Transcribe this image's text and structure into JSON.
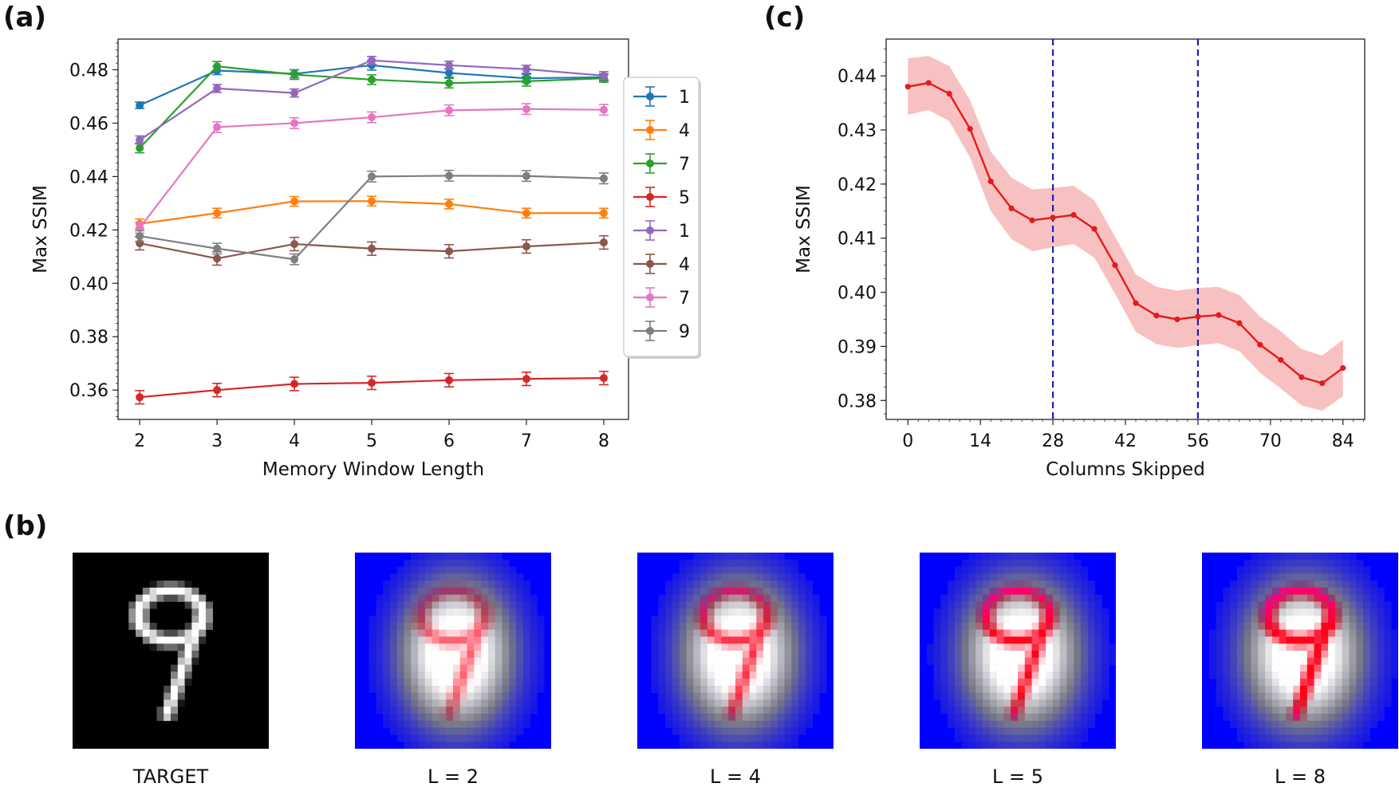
{
  "panel_labels": {
    "a": "(a)",
    "b": "(b)",
    "c": "(c)"
  },
  "chart_data": [
    {
      "type": "line",
      "title": "",
      "xlabel": "Memory Window Length",
      "ylabel": "Max SSIM",
      "x": [
        2,
        3,
        4,
        5,
        6,
        7,
        8
      ],
      "xlim": [
        1.72,
        8.32
      ],
      "ylim": [
        0.349,
        0.4915
      ],
      "xticks": [
        "2",
        "3",
        "4",
        "5",
        "6",
        "7",
        "8"
      ],
      "yticks": [
        "0.36",
        "0.38",
        "0.40",
        "0.42",
        "0.44",
        "0.46",
        "0.48"
      ],
      "ytick_values": [
        0.36,
        0.38,
        0.4,
        0.42,
        0.44,
        0.46,
        0.48
      ],
      "legend_position": "right",
      "series": [
        {
          "name": "1",
          "color": "#1f77b4",
          "values": [
            0.4667,
            0.4797,
            0.4785,
            0.4817,
            0.4788,
            0.4768,
            0.4772
          ],
          "error": [
            0.0012,
            0.0015,
            0.0015,
            0.0018,
            0.0016,
            0.0015,
            0.0013
          ]
        },
        {
          "name": "4",
          "color": "#ff7f0e",
          "values": [
            0.4223,
            0.4263,
            0.4307,
            0.4308,
            0.4297,
            0.4263,
            0.4263
          ],
          "error": [
            0.0018,
            0.0018,
            0.0018,
            0.0018,
            0.0018,
            0.0018,
            0.0018
          ]
        },
        {
          "name": "7",
          "color": "#2ca02c",
          "values": [
            0.4507,
            0.4813,
            0.4782,
            0.4763,
            0.475,
            0.4757,
            0.4768
          ],
          "error": [
            0.0018,
            0.0018,
            0.0018,
            0.0018,
            0.0018,
            0.0018,
            0.0015
          ]
        },
        {
          "name": "5",
          "color": "#d62728",
          "values": [
            0.3573,
            0.36,
            0.3623,
            0.3627,
            0.3637,
            0.3642,
            0.3645
          ],
          "error": [
            0.0025,
            0.0025,
            0.0025,
            0.0025,
            0.0025,
            0.0025,
            0.0025
          ]
        },
        {
          "name": "1",
          "color": "#9467bd",
          "values": [
            0.4537,
            0.473,
            0.4713,
            0.4835,
            0.4817,
            0.4802,
            0.4778
          ],
          "error": [
            0.0015,
            0.0015,
            0.0015,
            0.0015,
            0.0015,
            0.0015,
            0.0015
          ]
        },
        {
          "name": "4",
          "color": "#8c564b",
          "values": [
            0.415,
            0.4093,
            0.4147,
            0.413,
            0.412,
            0.4138,
            0.4153
          ],
          "error": [
            0.0025,
            0.0025,
            0.0025,
            0.0025,
            0.0025,
            0.0025,
            0.0025
          ]
        },
        {
          "name": "7",
          "color": "#e377c2",
          "values": [
            0.4208,
            0.4585,
            0.46,
            0.4622,
            0.4648,
            0.4653,
            0.465
          ],
          "error": [
            0.002,
            0.002,
            0.002,
            0.002,
            0.002,
            0.002,
            0.002
          ]
        },
        {
          "name": "9",
          "color": "#7f7f7f",
          "values": [
            0.4177,
            0.413,
            0.409,
            0.44,
            0.4403,
            0.4402,
            0.4393
          ],
          "error": [
            0.002,
            0.002,
            0.002,
            0.002,
            0.002,
            0.002,
            0.002
          ]
        }
      ]
    },
    {
      "type": "line",
      "title": "",
      "xlabel": "Columns Skipped",
      "ylabel": "Max SSIM",
      "x": [
        0,
        4,
        8,
        12,
        16,
        20,
        24,
        28,
        32,
        36,
        40,
        44,
        48,
        52,
        56,
        60,
        64,
        68,
        72,
        76,
        80,
        84
      ],
      "values": [
        0.438,
        0.4387,
        0.4367,
        0.4302,
        0.4205,
        0.4155,
        0.4133,
        0.4138,
        0.4143,
        0.4117,
        0.405,
        0.398,
        0.3957,
        0.395,
        0.3955,
        0.3958,
        0.3943,
        0.3903,
        0.3875,
        0.3843,
        0.3832,
        0.386
      ],
      "band_upper": [
        0.4432,
        0.4437,
        0.4418,
        0.4355,
        0.426,
        0.4212,
        0.419,
        0.4193,
        0.4197,
        0.417,
        0.4103,
        0.4033,
        0.401,
        0.4003,
        0.4008,
        0.401,
        0.3995,
        0.3955,
        0.3928,
        0.3895,
        0.3883,
        0.3912
      ],
      "band_lower": [
        0.4328,
        0.4337,
        0.4316,
        0.4249,
        0.415,
        0.4098,
        0.4076,
        0.4083,
        0.4089,
        0.4064,
        0.3997,
        0.3927,
        0.3904,
        0.3897,
        0.3902,
        0.3906,
        0.3891,
        0.3851,
        0.3822,
        0.3791,
        0.3781,
        0.3808
      ],
      "color": "#e41a1c",
      "band_color": "#f7b6b6",
      "vlines": [
        28,
        56
      ],
      "vline_color": "#1f1fb4",
      "xlim": [
        -4.2,
        88.2
      ],
      "ylim": [
        0.3765,
        0.4468
      ],
      "xticks": [
        "0",
        "14",
        "28",
        "42",
        "56",
        "70",
        "84"
      ],
      "xtick_values": [
        0,
        14,
        28,
        42,
        56,
        70,
        84
      ],
      "yticks": [
        "0.38",
        "0.39",
        "0.40",
        "0.41",
        "0.42",
        "0.43",
        "0.44"
      ],
      "ytick_values": [
        0.38,
        0.39,
        0.4,
        0.41,
        0.42,
        0.43,
        0.44
      ]
    }
  ],
  "images": {
    "captions": [
      "TARGET",
      "L = 2",
      "L = 4",
      "L = 5",
      "L = 8"
    ],
    "target_background": "#000000",
    "heatmap_background": "#0000ff",
    "heatmap_hot": "#ff0000"
  }
}
